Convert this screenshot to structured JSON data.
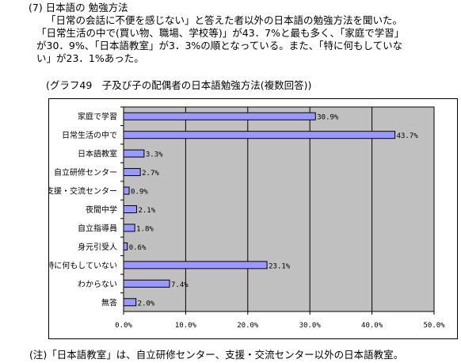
{
  "section": {
    "heading": "(7) 日本語の 勉強方法",
    "paragraph_lines": [
      "「日常の会話に不便を感じない」と答えた者以外の日本語の勉強方法を聞いた。",
      "「日常生活の中で(買い物、職場、学校等)」が43．7%と最も多く、「家庭で学習」",
      "が30．9%、「日本語教室」が3．3%の順となっている。また、「特に何もしていな",
      "い」が23．1%あった。"
    ]
  },
  "chart_caption": "(グラフ49　子及び子の配偶者の日本語勉強方法(複数回答))",
  "footnote": "(注)「日本語教室」は、自立研修センター、支援・交流センター以外の日本語教室。",
  "chart_data": {
    "type": "bar",
    "orientation": "horizontal",
    "categories": [
      "家庭で学習",
      "日常生活の中で",
      "日本語教室",
      "自立研修センター",
      "支援・交流センター",
      "夜間中学",
      "自立指導員",
      "身元引受人",
      "特に何もしていない",
      "わからない",
      "無答"
    ],
    "values": [
      30.9,
      43.7,
      3.3,
      2.7,
      0.9,
      2.1,
      1.8,
      0.6,
      23.1,
      7.4,
      2.0
    ],
    "value_labels": [
      "30.9%",
      "43.7%",
      "3.3%",
      "2.7%",
      "0.9%",
      "2.1%",
      "1.8%",
      "0.6%",
      "23.1%",
      "7.4%",
      "2.0%"
    ],
    "xlim": [
      0,
      50
    ],
    "x_ticks": [
      0,
      10,
      20,
      30,
      40,
      50
    ],
    "x_tick_labels": [
      "0.0%",
      "10.0%",
      "20.0%",
      "30.0%",
      "40.0%",
      "50.0%"
    ],
    "grid": "vertical",
    "colors": {
      "plot_background": "#c0c0c0",
      "bar_fill": "#9999ff",
      "bar_stroke": "#000000",
      "grid": "#000000"
    }
  }
}
